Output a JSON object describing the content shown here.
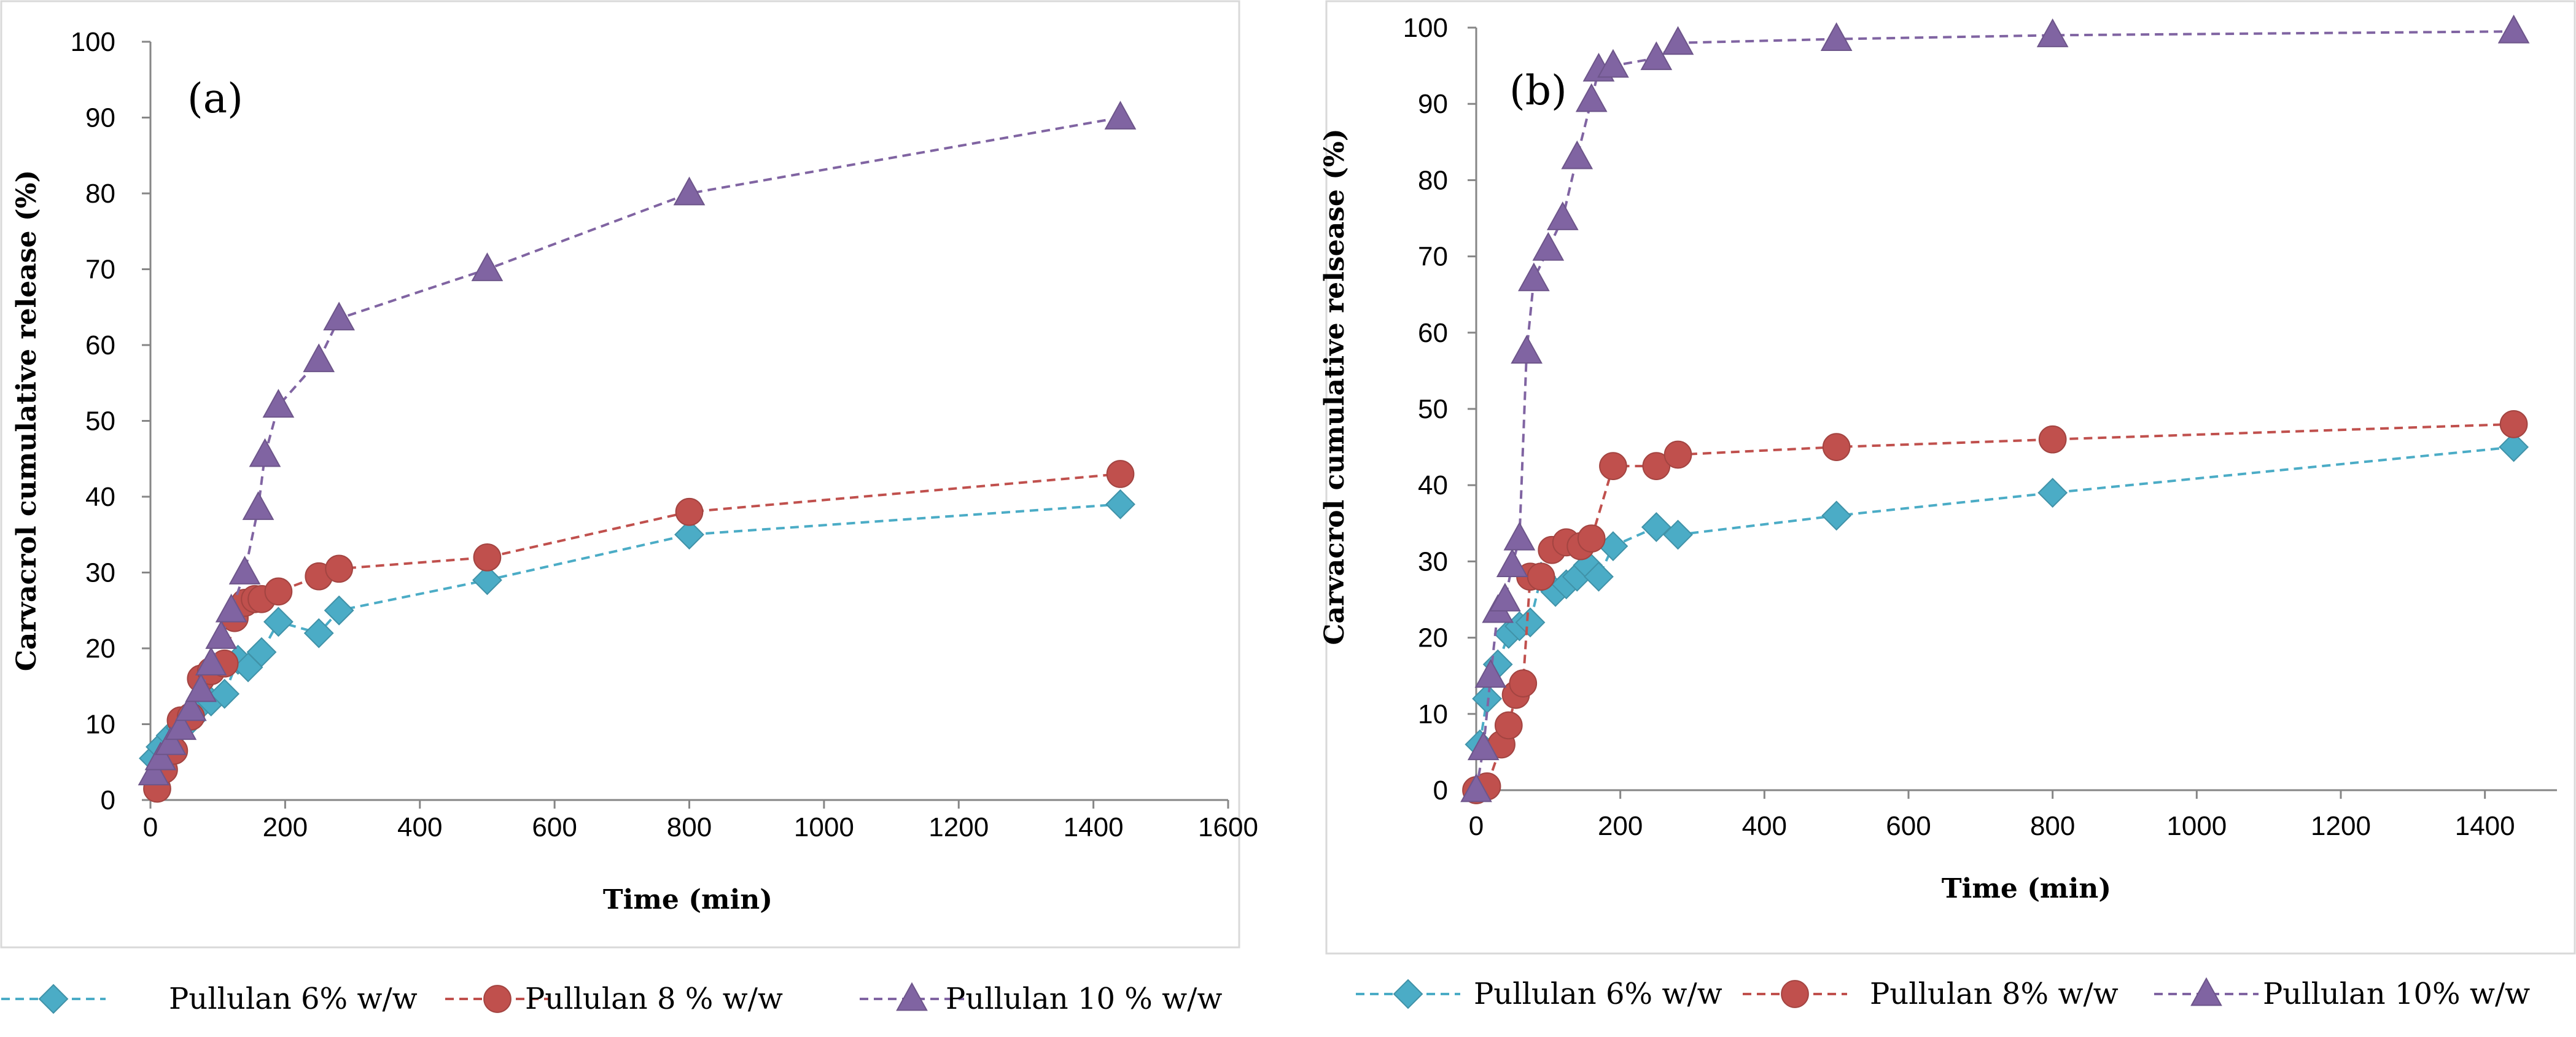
{
  "chart_data": [
    {
      "type": "line",
      "panel_label": "(a)",
      "title": "",
      "xlabel": "Time (min)",
      "ylabel": "Carvacrol cumulative release (%)",
      "xlim": [
        0,
        1600
      ],
      "ylim": [
        0,
        100
      ],
      "xticks": [
        0,
        200,
        400,
        600,
        800,
        1000,
        1200,
        1400,
        1600
      ],
      "yticks": [
        0,
        10,
        20,
        30,
        40,
        50,
        60,
        70,
        80,
        90,
        100
      ],
      "grid": false,
      "legend_position": "bottom",
      "series": [
        {
          "name": "Pullulan 6% w/w",
          "color": "#4bacc6",
          "marker": "diamond",
          "x": [
            5,
            15,
            30,
            45,
            60,
            75,
            90,
            110,
            130,
            145,
            165,
            190,
            250,
            280,
            500,
            800,
            1440
          ],
          "y": [
            5.5,
            7,
            8.5,
            9.5,
            10.5,
            12.5,
            13,
            14,
            18.5,
            17.5,
            19.5,
            23.5,
            22,
            25,
            29,
            35,
            39
          ]
        },
        {
          "name": "Pullulan 8 % w/w",
          "color": "#c0504d",
          "marker": "circle",
          "x": [
            10,
            20,
            35,
            45,
            60,
            75,
            90,
            110,
            125,
            140,
            155,
            165,
            190,
            250,
            280,
            500,
            800,
            1440
          ],
          "y": [
            1.5,
            4,
            6.5,
            10.5,
            11,
            16,
            17,
            18,
            24,
            26,
            26.5,
            26.5,
            27.5,
            29.5,
            30.5,
            32,
            38,
            43
          ]
        },
        {
          "name": "Pullulan 10 % w/w",
          "color": "#8064a2",
          "marker": "triangle",
          "x": [
            5,
            15,
            30,
            45,
            60,
            75,
            90,
            105,
            120,
            140,
            160,
            170,
            190,
            250,
            280,
            500,
            800,
            1440
          ],
          "y": [
            3.5,
            5.5,
            7.5,
            9.5,
            12,
            14.5,
            18,
            21.5,
            25,
            30,
            38.5,
            45.5,
            52,
            58,
            63.5,
            70,
            80,
            90
          ]
        }
      ]
    },
    {
      "type": "line",
      "panel_label": "(b)",
      "title": "",
      "xlabel": "Time (min)",
      "ylabel": "Carvacrol cumulative relsease (%)",
      "xlim": [
        0,
        1500
      ],
      "ylim": [
        0,
        100
      ],
      "xticks": [
        0,
        200,
        400,
        600,
        800,
        1000,
        1200,
        1400
      ],
      "yticks": [
        0,
        10,
        20,
        30,
        40,
        50,
        60,
        70,
        80,
        90,
        100
      ],
      "grid": false,
      "legend_position": "bottom",
      "series": [
        {
          "name": "Pullulan 6% w/w",
          "color": "#4bacc6",
          "marker": "diamond",
          "x": [
            5,
            15,
            30,
            45,
            60,
            75,
            90,
            110,
            125,
            140,
            155,
            170,
            190,
            250,
            280,
            500,
            800,
            1440
          ],
          "y": [
            6,
            12,
            16.5,
            20.5,
            21.5,
            22,
            28,
            26,
            27,
            28,
            29.5,
            28,
            32,
            34.5,
            33.5,
            36,
            39,
            45
          ]
        },
        {
          "name": "Pullulan 8% w/w",
          "color": "#c0504d",
          "marker": "circle",
          "x": [
            0,
            15,
            35,
            45,
            55,
            65,
            75,
            90,
            105,
            125,
            145,
            160,
            190,
            250,
            280,
            500,
            800,
            1440
          ],
          "y": [
            0,
            0.5,
            6,
            8.5,
            12.5,
            14,
            28,
            28,
            31.5,
            32.5,
            32,
            33,
            42.5,
            42.5,
            44,
            45,
            46,
            48
          ]
        },
        {
          "name": "Pullulan 10% w/w",
          "color": "#8064a2",
          "marker": "triangle",
          "x": [
            0,
            10,
            20,
            30,
            40,
            50,
            60,
            70,
            80,
            100,
            120,
            140,
            160,
            170,
            190,
            250,
            280,
            500,
            800,
            1440
          ],
          "y": [
            0,
            5.5,
            15,
            23.5,
            25,
            29.5,
            33,
            57.5,
            67,
            71,
            75,
            83,
            90.5,
            94.5,
            95,
            96,
            98,
            98.5,
            99,
            99.5
          ]
        }
      ]
    }
  ]
}
